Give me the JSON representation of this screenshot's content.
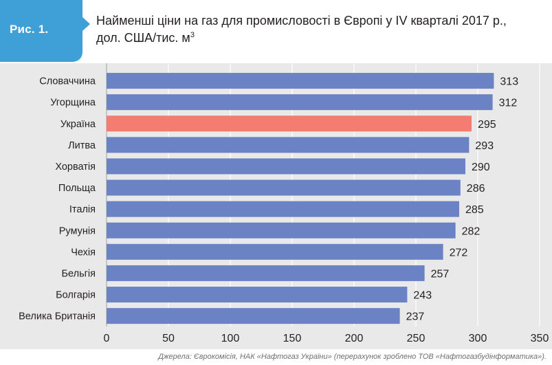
{
  "figure": {
    "label": "Рис. 1.",
    "title_line1": "Найменші ціни на газ для промисловості в Європі у IV кварталі 2017 р.,",
    "title_line2": "дол. США/тис. м",
    "title_sup": "3"
  },
  "source": "Джерела: Єврокомісія, НАК «Нафтогаз України» (перерахунок зроблено ТОВ «Нафтогазбудінформатика»).",
  "colors": {
    "bar": "#6b82c4",
    "highlight": "#f47c71",
    "header_accent": "#3f9fd7",
    "plot_background": "#e9e9e9"
  },
  "chart_data": {
    "type": "bar",
    "orientation": "horizontal",
    "categories": [
      "Словаччина",
      "Угорщина",
      "Україна",
      "Литва",
      "Хорватія",
      "Польща",
      "Італія",
      "Румунія",
      "Чехія",
      "Бельгія",
      "Болгарія",
      "Велика Британія"
    ],
    "values": [
      313,
      312,
      295,
      293,
      290,
      286,
      285,
      282,
      272,
      257,
      243,
      237
    ],
    "highlight": [
      "Україна"
    ],
    "xlim": [
      0,
      350
    ],
    "xticks": [
      0,
      50,
      100,
      150,
      200,
      250,
      300,
      350
    ],
    "grid": true,
    "data_labels": true
  }
}
